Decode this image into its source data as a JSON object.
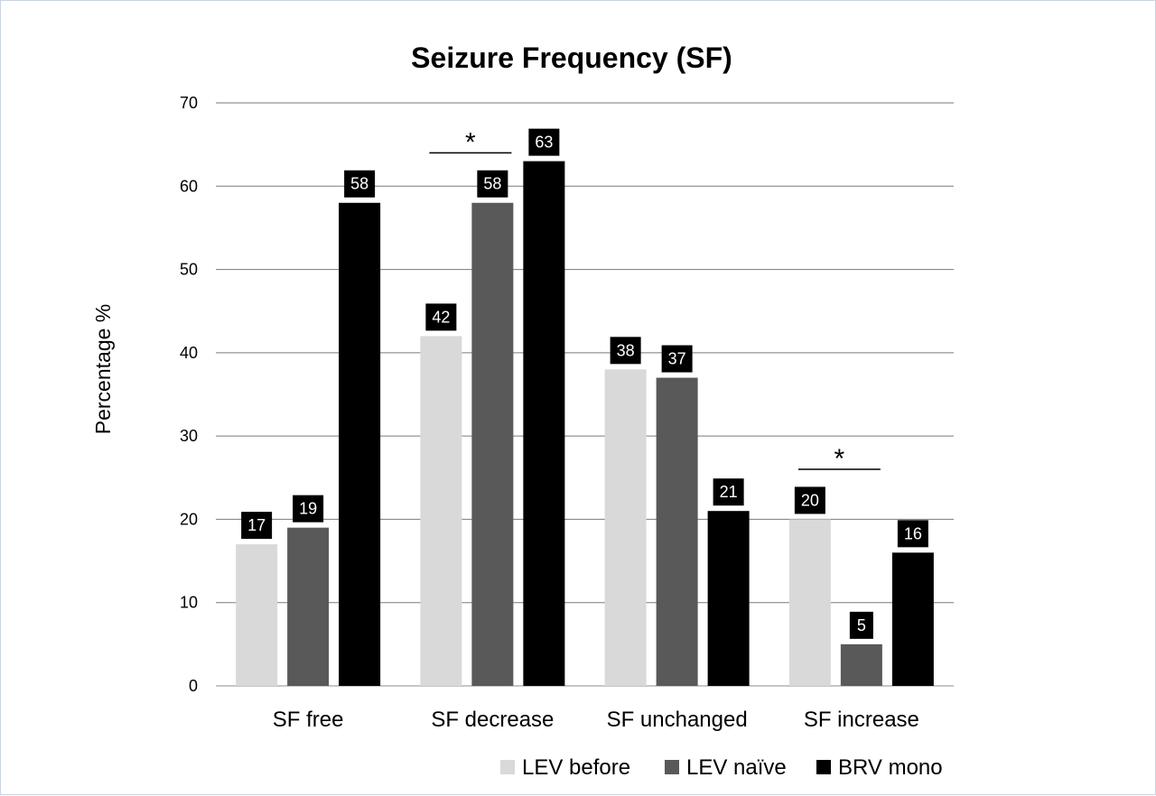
{
  "chart_data": {
    "type": "bar",
    "title": "Seizure Frequency (SF)",
    "xlabel": "",
    "ylabel": "Percentage %",
    "ylim": [
      0,
      70
    ],
    "yticks": [
      0,
      10,
      20,
      30,
      40,
      50,
      60,
      70
    ],
    "grid": true,
    "legend_position": "bottom-right",
    "categories": [
      "SF free",
      "SF decrease",
      "SF unchanged",
      "SF increase"
    ],
    "series": [
      {
        "name": "LEV before",
        "color": "#d9d9d9",
        "values": [
          17,
          42,
          38,
          20
        ]
      },
      {
        "name": "LEV naïve",
        "color": "#595959",
        "values": [
          19,
          58,
          37,
          5
        ]
      },
      {
        "name": "BRV mono",
        "color": "#000000",
        "values": [
          58,
          63,
          21,
          16
        ]
      }
    ],
    "annotations": [
      {
        "text": "*",
        "category": "SF decrease",
        "from_series": 0,
        "to_series": 1,
        "y": 64
      },
      {
        "text": "*",
        "category": "SF increase",
        "from_series": 0,
        "to_series": 1,
        "y": 26
      }
    ]
  }
}
